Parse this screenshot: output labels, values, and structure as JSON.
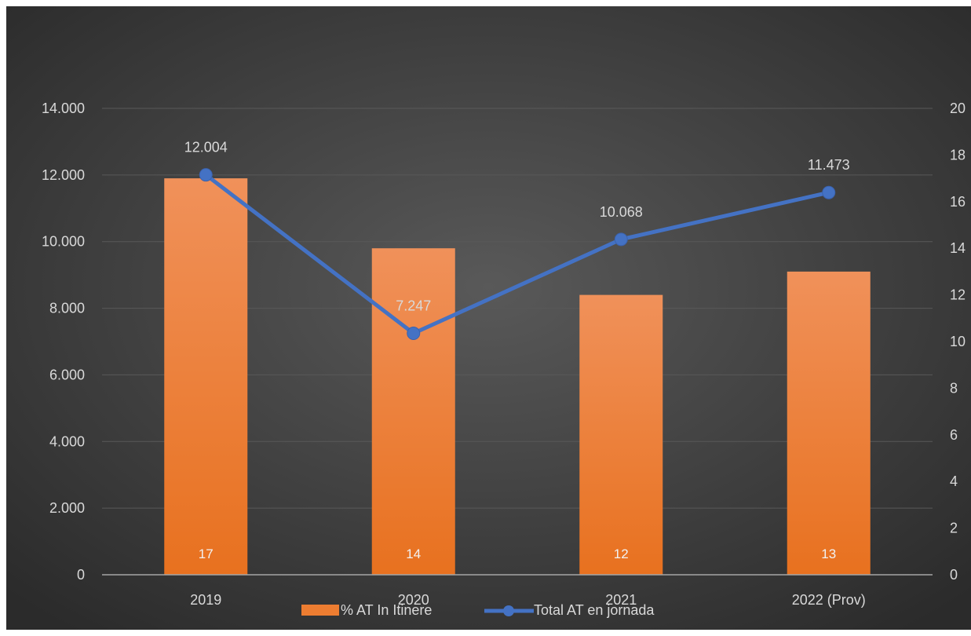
{
  "chart_data": {
    "type": "bar",
    "categories": [
      "2019",
      "2020",
      "2021",
      "2022 (Prov)"
    ],
    "series": [
      {
        "name": "% AT In Itinere",
        "type": "bar",
        "axis": "secondary",
        "values": [
          17,
          14,
          12,
          13
        ],
        "labels": [
          "17",
          "14",
          "12",
          "13"
        ],
        "color": "#ed7d31"
      },
      {
        "name": "Total AT en jornada",
        "type": "line",
        "axis": "primary",
        "values": [
          12004,
          7247,
          10068,
          11473
        ],
        "labels": [
          "12.004",
          "7.247",
          "10.068",
          "11.473"
        ],
        "color": "#4472c4"
      }
    ],
    "y_primary": {
      "range": [
        0,
        14000
      ],
      "ticks": [
        "0",
        "2.000",
        "4.000",
        "6.000",
        "8.000",
        "10.000",
        "12.000",
        "14.000"
      ]
    },
    "y_secondary": {
      "range": [
        0,
        20
      ],
      "ticks": [
        "0",
        "2",
        "4",
        "6",
        "8",
        "10",
        "12",
        "14",
        "16",
        "18",
        "20"
      ]
    },
    "grid": true,
    "legend": "bottom",
    "colors": {
      "background": "#404040",
      "gridline": "#595959",
      "axis_text": "#d9d9d9"
    }
  }
}
